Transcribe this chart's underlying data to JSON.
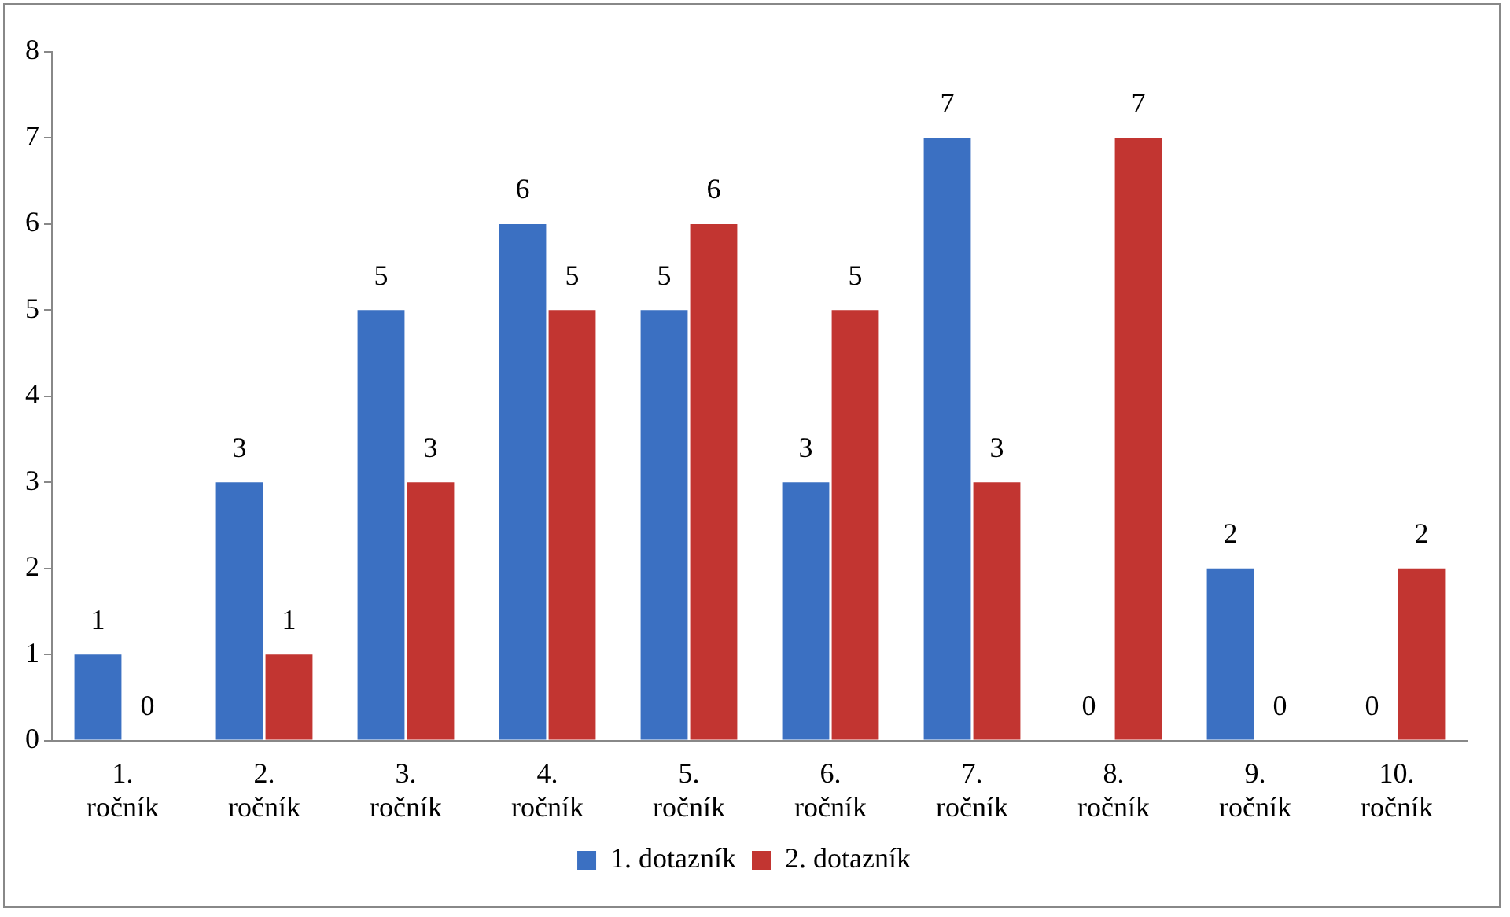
{
  "chart_data": {
    "type": "bar",
    "categories": [
      "1. ročník",
      "2. ročník",
      "3. ročník",
      "4. ročník",
      "5. ročník",
      "6. ročník",
      "7. ročník",
      "8. ročník",
      "9. ročník",
      "10. ročník"
    ],
    "series": [
      {
        "name": "1. dotazník",
        "color": "#3b70c2",
        "values": [
          1,
          3,
          5,
          6,
          5,
          3,
          7,
          0,
          2,
          0
        ]
      },
      {
        "name": "2. dotazník",
        "color": "#c23531",
        "values": [
          0,
          1,
          3,
          5,
          6,
          5,
          3,
          7,
          0,
          2
        ]
      }
    ],
    "ylim": [
      0,
      8
    ],
    "yticks": [
      0,
      1,
      2,
      3,
      4,
      5,
      6,
      7,
      8
    ],
    "grid": false,
    "legend": "bottom",
    "data_labels": true
  }
}
